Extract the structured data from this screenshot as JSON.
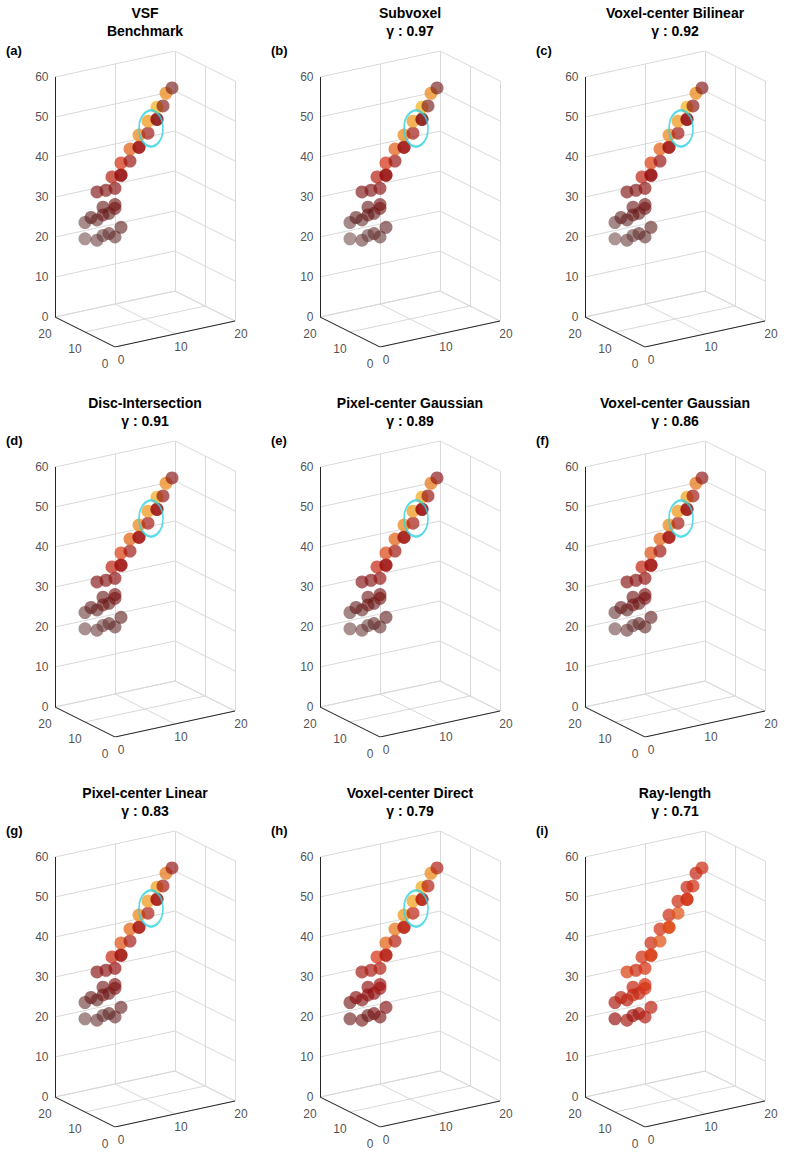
{
  "chart_data": {
    "type": "scatter",
    "grid": true,
    "xlim": [
      0,
      20
    ],
    "ylim": [
      0,
      20
    ],
    "zlim": [
      0,
      60
    ],
    "xticks": [
      0,
      10,
      20
    ],
    "yticks": [
      0,
      10,
      20
    ],
    "zticks": [
      0,
      10,
      20,
      30,
      40,
      50,
      60
    ],
    "points": [
      [
        4,
        18,
        19
      ],
      [
        6,
        18,
        18
      ],
      [
        8,
        18,
        19
      ],
      [
        5,
        14,
        21
      ],
      [
        7,
        14,
        20
      ],
      [
        9,
        16,
        21
      ],
      [
        5,
        20,
        22
      ],
      [
        7,
        20,
        22
      ],
      [
        9,
        20,
        23
      ],
      [
        5,
        18,
        24
      ],
      [
        7,
        18,
        24
      ],
      [
        9,
        18,
        25
      ],
      [
        6,
        16,
        27
      ],
      [
        8,
        16,
        27
      ],
      [
        7,
        20,
        29
      ],
      [
        7.5,
        18,
        30
      ],
      [
        9,
        18,
        30
      ],
      [
        8.5,
        18,
        33
      ],
      [
        10,
        18,
        33
      ],
      [
        10,
        18,
        36
      ],
      [
        11.5,
        18,
        36
      ],
      [
        11.5,
        18,
        39
      ],
      [
        13,
        18,
        39
      ],
      [
        13,
        18,
        42
      ],
      [
        14.5,
        18,
        42
      ],
      [
        14.5,
        18,
        45
      ],
      [
        16,
        18,
        45
      ],
      [
        16,
        18,
        48
      ],
      [
        17,
        18,
        48
      ],
      [
        17.5,
        18,
        51
      ],
      [
        18.5,
        18,
        52
      ],
      [
        9,
        16,
        34
      ],
      [
        12,
        16,
        40
      ],
      [
        15,
        16,
        46
      ]
    ],
    "panels": [
      {
        "panel": "(a)",
        "title": "VSF",
        "subtitle": "Benchmark",
        "highlight_center": [
          15,
          18,
          43
        ],
        "values": [
          0.2,
          0.25,
          0.3,
          0.22,
          0.28,
          0.35,
          0.25,
          0.3,
          0.35,
          0.35,
          0.4,
          0.45,
          0.4,
          0.45,
          0.5,
          0.5,
          0.55,
          0.7,
          0.6,
          0.8,
          0.6,
          0.85,
          0.62,
          0.9,
          0.62,
          0.92,
          0.58,
          0.95,
          0.5,
          0.9,
          0.45,
          0.6,
          0.62,
          0.55
        ]
      },
      {
        "panel": "(b)",
        "title": "Subvoxel",
        "subtitle": "γ : 0.97",
        "highlight_center": [
          15,
          18,
          43
        ],
        "values": [
          0.2,
          0.26,
          0.3,
          0.22,
          0.28,
          0.34,
          0.25,
          0.3,
          0.36,
          0.35,
          0.41,
          0.45,
          0.4,
          0.46,
          0.5,
          0.5,
          0.55,
          0.7,
          0.6,
          0.8,
          0.6,
          0.85,
          0.62,
          0.9,
          0.62,
          0.92,
          0.56,
          0.95,
          0.48,
          0.9,
          0.45,
          0.6,
          0.62,
          0.53
        ]
      },
      {
        "panel": "(c)",
        "title": "Voxel-center Bilinear",
        "subtitle": "γ : 0.92",
        "highlight_center": [
          15,
          18,
          43
        ],
        "values": [
          0.2,
          0.26,
          0.31,
          0.22,
          0.29,
          0.35,
          0.26,
          0.31,
          0.36,
          0.36,
          0.41,
          0.46,
          0.41,
          0.46,
          0.5,
          0.5,
          0.56,
          0.72,
          0.6,
          0.82,
          0.6,
          0.85,
          0.62,
          0.9,
          0.63,
          0.92,
          0.6,
          0.95,
          0.55,
          0.9,
          0.5,
          0.6,
          0.63,
          0.6
        ]
      },
      {
        "panel": "(d)",
        "title": "Disc-Intersection",
        "subtitle": "γ : 0.91",
        "highlight_center": [
          15,
          18,
          43
        ],
        "values": [
          0.22,
          0.27,
          0.31,
          0.23,
          0.3,
          0.36,
          0.27,
          0.32,
          0.37,
          0.37,
          0.42,
          0.47,
          0.42,
          0.47,
          0.52,
          0.52,
          0.57,
          0.72,
          0.62,
          0.82,
          0.62,
          0.86,
          0.64,
          0.9,
          0.64,
          0.92,
          0.62,
          0.94,
          0.58,
          0.9,
          0.52,
          0.62,
          0.64,
          0.62
        ]
      },
      {
        "panel": "(e)",
        "title": "Pixel-center Gaussian",
        "subtitle": "γ : 0.89",
        "highlight_center": [
          15,
          18,
          43
        ],
        "values": [
          0.22,
          0.27,
          0.32,
          0.24,
          0.3,
          0.36,
          0.27,
          0.32,
          0.38,
          0.38,
          0.43,
          0.47,
          0.43,
          0.48,
          0.52,
          0.53,
          0.58,
          0.74,
          0.62,
          0.83,
          0.63,
          0.86,
          0.64,
          0.9,
          0.65,
          0.92,
          0.63,
          0.94,
          0.6,
          0.88,
          0.55,
          0.62,
          0.64,
          0.6
        ]
      },
      {
        "panel": "(f)",
        "title": "Voxel-center Gaussian",
        "subtitle": "γ : 0.86",
        "highlight_center": [
          15,
          18,
          43
        ],
        "values": [
          0.23,
          0.28,
          0.33,
          0.25,
          0.31,
          0.37,
          0.28,
          0.33,
          0.38,
          0.39,
          0.44,
          0.48,
          0.44,
          0.49,
          0.53,
          0.54,
          0.58,
          0.74,
          0.63,
          0.84,
          0.63,
          0.86,
          0.65,
          0.9,
          0.65,
          0.92,
          0.65,
          0.93,
          0.62,
          0.88,
          0.56,
          0.63,
          0.65,
          0.62
        ]
      },
      {
        "panel": "(g)",
        "title": "Pixel-center Linear",
        "subtitle": "γ : 0.83",
        "highlight_center": [
          15,
          18,
          43
        ],
        "values": [
          0.24,
          0.29,
          0.34,
          0.26,
          0.32,
          0.38,
          0.29,
          0.34,
          0.39,
          0.4,
          0.45,
          0.49,
          0.45,
          0.5,
          0.54,
          0.55,
          0.59,
          0.75,
          0.64,
          0.84,
          0.64,
          0.86,
          0.66,
          0.9,
          0.66,
          0.92,
          0.66,
          0.93,
          0.64,
          0.88,
          0.58,
          0.64,
          0.66,
          0.64
        ]
      },
      {
        "panel": "(h)",
        "title": "Voxel-center Direct",
        "subtitle": "γ : 0.79",
        "highlight_center": [
          15,
          18,
          43
        ],
        "values": [
          0.4,
          0.45,
          0.5,
          0.42,
          0.48,
          0.52,
          0.45,
          0.5,
          0.55,
          0.55,
          0.58,
          0.62,
          0.58,
          0.62,
          0.65,
          0.66,
          0.68,
          0.8,
          0.7,
          0.86,
          0.7,
          0.88,
          0.72,
          0.92,
          0.72,
          0.93,
          0.72,
          0.94,
          0.7,
          0.9,
          0.68,
          0.7,
          0.72,
          0.7
        ]
      },
      {
        "panel": "(i)",
        "title": "Ray-length",
        "subtitle": "γ : 0.71",
        "values": [
          0.6,
          0.65,
          0.7,
          0.62,
          0.68,
          0.72,
          0.66,
          0.7,
          0.74,
          0.72,
          0.75,
          0.78,
          0.74,
          0.8,
          0.82,
          0.76,
          0.8,
          0.78,
          0.85,
          0.76,
          0.84,
          0.78,
          0.86,
          0.77,
          0.84,
          0.76,
          0.8,
          0.75,
          0.78,
          0.74,
          0.76,
          0.8,
          0.82,
          0.78
        ]
      }
    ]
  }
}
